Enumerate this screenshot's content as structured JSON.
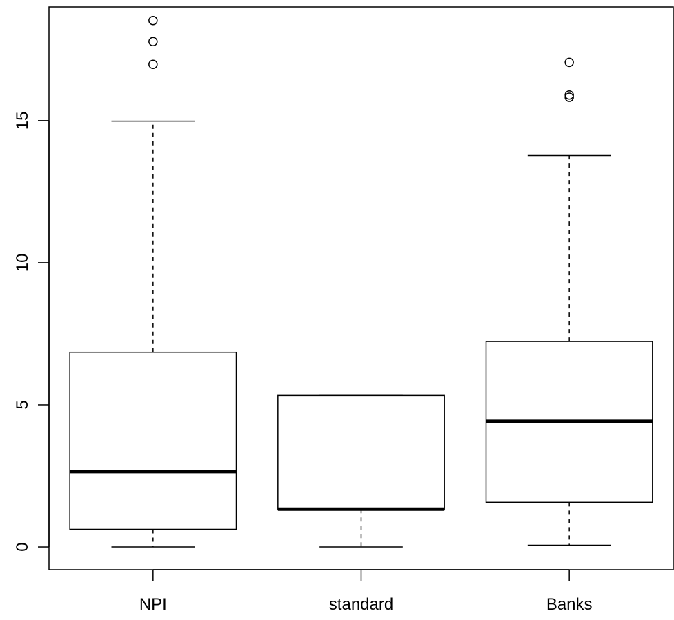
{
  "chart_data": {
    "type": "boxplot",
    "categories": [
      "NPI",
      "standard",
      "Banks"
    ],
    "title": "",
    "xlabel": "",
    "ylabel": "",
    "ylim": [
      -0.8,
      19.0
    ],
    "yticks": [
      0,
      5,
      10,
      15
    ],
    "ytick_labels": [
      "0",
      "5",
      "10",
      "15"
    ],
    "grid": false,
    "legend": "none",
    "boxes": [
      {
        "category": "NPI",
        "whisker_low": 0.0,
        "q1": 0.62,
        "median": 2.65,
        "q3": 6.85,
        "whisker_high": 14.98,
        "outliers": [
          16.98,
          17.78,
          18.52
        ]
      },
      {
        "category": "standard",
        "whisker_low": 0.0,
        "q1": 1.33,
        "median": 1.33,
        "q3": 5.33,
        "whisker_high": 5.33,
        "outliers": []
      },
      {
        "category": "Banks",
        "whisker_low": 0.06,
        "q1": 1.57,
        "median": 4.42,
        "q3": 7.23,
        "whisker_high": 13.77,
        "outliers": [
          15.82,
          15.9,
          17.05
        ]
      }
    ],
    "colors": {
      "stroke": "#000000",
      "box_fill": "#ffffff",
      "background": "#ffffff"
    }
  }
}
